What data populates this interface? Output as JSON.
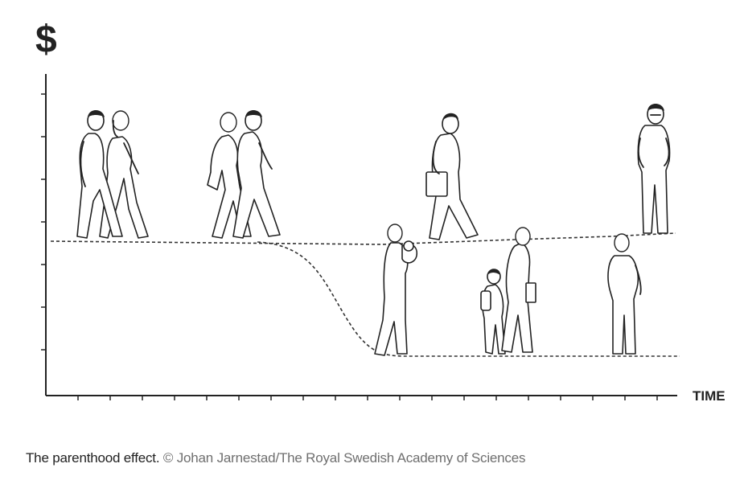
{
  "diagram": {
    "y_axis_symbol": "$",
    "x_axis_label": "TIME"
  },
  "caption": {
    "title": "The parenthood effect.",
    "credit": "© Johan Jarnestad/The Royal Swedish Academy of Sciences"
  },
  "colors": {
    "ink": "#222222",
    "caption_text": "#222222",
    "credit_text": "#6f6f6f",
    "background": "#ffffff"
  }
}
